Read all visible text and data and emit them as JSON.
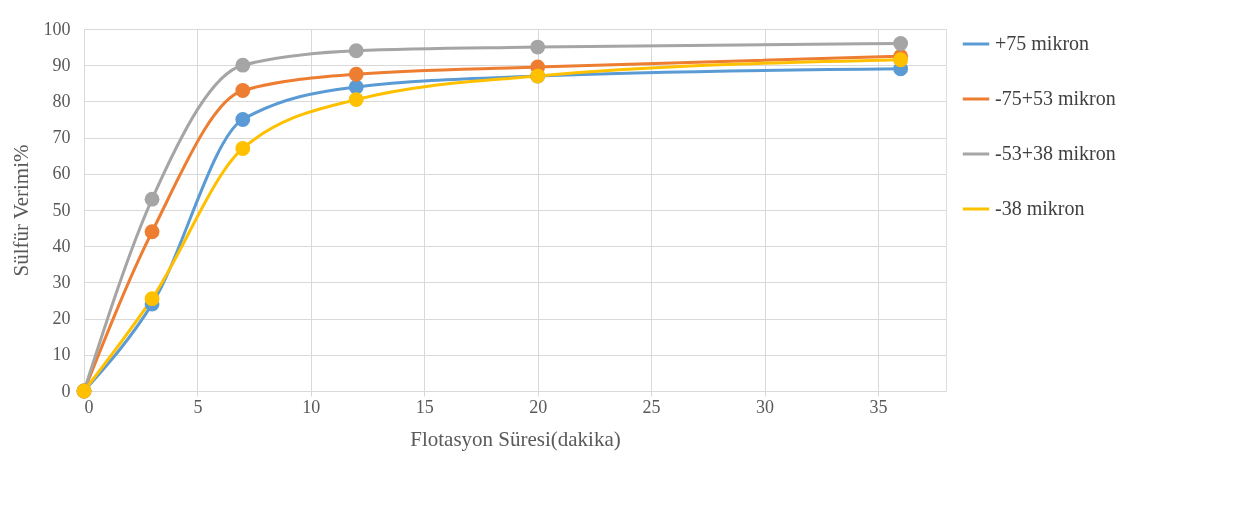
{
  "chart_data": {
    "type": "line",
    "xlabel": "Flotasyon Süresi(dakika)",
    "ylabel": "Sülfür Verimi%",
    "x": [
      0,
      3,
      7,
      12,
      20,
      36
    ],
    "series": [
      {
        "name": "+75 mikron",
        "color": "#5b9bd5",
        "values": [
          0,
          24,
          75,
          84,
          87,
          89
        ]
      },
      {
        "name": "-75+53 mikron",
        "color": "#ed7d31",
        "values": [
          0,
          44,
          83,
          87.5,
          89.5,
          92.5
        ]
      },
      {
        "name": "-53+38 mikron",
        "color": "#a5a5a5",
        "values": [
          0,
          53,
          90,
          94,
          95,
          96
        ]
      },
      {
        "name": "-38 mikron",
        "color": "#ffc000",
        "values": [
          0,
          25.5,
          67,
          80.5,
          87,
          91.5
        ]
      }
    ],
    "xlim": [
      0,
      38
    ],
    "xticks": [
      0,
      5,
      10,
      15,
      20,
      25,
      30,
      35
    ],
    "ylim": [
      0,
      100
    ],
    "yticks": [
      0,
      10,
      20,
      30,
      40,
      50,
      60,
      70,
      80,
      90,
      100
    ],
    "grid": true,
    "legend": "right",
    "marker": "circle",
    "line_style": "solid"
  }
}
